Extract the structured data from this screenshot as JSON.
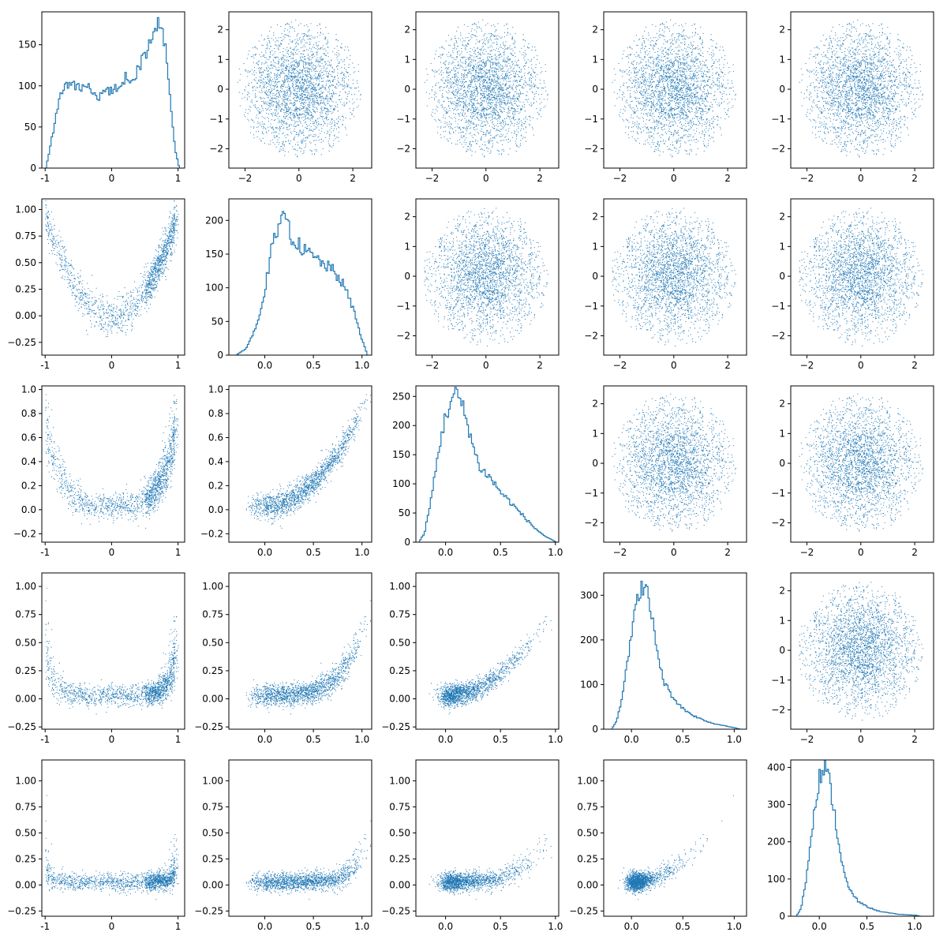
{
  "figure": {
    "type": "pair-plot",
    "rows": 5,
    "cols": 5,
    "marker_color": "#1f77b4",
    "axes_color": "#000000"
  },
  "chart_data": {
    "type": "scatter",
    "layout": "5x5 corner pair plot: histograms on diagonal, scatter of (column variable, row variable) below the diagonal, uncorrelated 2-D gaussian noise above the diagonal",
    "columns": [
      {
        "xlim": [
          -1.05,
          1.1
        ],
        "xticks": [
          -1,
          0,
          1
        ],
        "xtick_labels": [
          "-1",
          "0",
          "1"
        ]
      },
      {
        "xlim": [
          -0.37,
          1.1
        ],
        "xticks": [
          0.0,
          0.5,
          1.0
        ],
        "xtick_labels": [
          "0.0",
          "0.5",
          "1.0"
        ]
      },
      {
        "xlim": [
          -0.27,
          1.03
        ],
        "xticks": [
          0.0,
          0.5,
          1.0
        ],
        "xtick_labels": [
          "0.0",
          "0.5",
          "1.0"
        ]
      },
      {
        "xlim": [
          -0.27,
          1.12
        ],
        "xticks": [
          0.0,
          0.5,
          1.0
        ],
        "xtick_labels": [
          "0.0",
          "0.5",
          "1.0"
        ]
      },
      {
        "xlim": [
          -0.3,
          1.2
        ],
        "xticks": [
          0.0,
          0.5,
          1.0
        ],
        "xtick_labels": [
          "0.0",
          "0.5",
          "1.0"
        ]
      }
    ],
    "rows": [
      {
        "ylim": [
          -0.37,
          1.1
        ],
        "yticks": [
          -0.25,
          0.0,
          0.25,
          0.5,
          0.75,
          1.0
        ],
        "ytick_labels": [
          "−0.25",
          "0.00",
          "0.25",
          "0.50",
          "0.75",
          "1.00"
        ]
      },
      {
        "ylim": [
          -0.27,
          1.03
        ],
        "yticks": [
          -0.2,
          0.0,
          0.2,
          0.4,
          0.6,
          0.8,
          1.0
        ],
        "ytick_labels": [
          "−0.2",
          "0.0",
          "0.2",
          "0.4",
          "0.6",
          "0.8",
          "1.0"
        ]
      },
      {
        "ylim": [
          -0.27,
          1.12
        ],
        "yticks": [
          -0.25,
          0.0,
          0.25,
          0.5,
          0.75,
          1.0
        ],
        "ytick_labels": [
          "−0.25",
          "0.00",
          "0.25",
          "0.50",
          "0.75",
          "1.00"
        ]
      },
      {
        "ylim": [
          -0.3,
          1.2
        ],
        "yticks": [
          -0.25,
          0.0,
          0.25,
          0.5,
          0.75,
          1.0
        ],
        "ytick_labels": [
          "−0.25",
          "0.00",
          "0.25",
          "0.50",
          "0.75",
          "1.00"
        ]
      }
    ],
    "noise_axes": {
      "xlim": [
        -2.6,
        2.7
      ],
      "ylim": [
        -2.65,
        2.6
      ],
      "ticks": [
        -2,
        -1,
        0,
        1,
        2
      ],
      "xtick_labels": [
        "−2",
        "0",
        "2"
      ],
      "xtick_values": [
        -2,
        0,
        2
      ],
      "ytick_labels": [
        "−2",
        "−1",
        "0",
        "1",
        "2"
      ]
    },
    "histograms": [
      {
        "variable": 0,
        "ylim": [
          0,
          190
        ],
        "yticks": [
          0,
          50,
          100,
          150
        ],
        "ytick_labels": [
          "0",
          "50",
          "100",
          "150"
        ],
        "bin_centers": [
          -1.0,
          -0.9,
          -0.8,
          -0.7,
          -0.6,
          -0.5,
          -0.4,
          -0.3,
          -0.2,
          -0.1,
          0.0,
          0.1,
          0.2,
          0.3,
          0.4,
          0.5,
          0.55,
          0.6,
          0.65,
          0.7,
          0.75,
          0.8,
          0.85,
          0.9,
          0.95,
          1.0
        ],
        "counts": [
          0,
          40,
          85,
          100,
          105,
          95,
          100,
          92,
          88,
          95,
          92,
          100,
          110,
          108,
          120,
          140,
          150,
          165,
          175,
          180,
          165,
          150,
          110,
          60,
          20,
          3
        ]
      },
      {
        "variable": 1,
        "ylim": [
          0,
          232
        ],
        "yticks": [
          0,
          50,
          100,
          150,
          200
        ],
        "ytick_labels": [
          "0",
          "50",
          "100",
          "150",
          "200"
        ],
        "bin_centers": [
          -0.3,
          -0.2,
          -0.1,
          0.0,
          0.05,
          0.1,
          0.15,
          0.2,
          0.25,
          0.3,
          0.4,
          0.5,
          0.6,
          0.7,
          0.8,
          0.9,
          1.0,
          1.05
        ],
        "counts": [
          0,
          10,
          40,
          100,
          150,
          175,
          185,
          220,
          180,
          170,
          155,
          145,
          135,
          125,
          105,
          70,
          20,
          0
        ]
      },
      {
        "variable": 2,
        "ylim": [
          0,
          268
        ],
        "yticks": [
          0,
          50,
          100,
          150,
          200,
          250
        ],
        "ytick_labels": [
          "0",
          "50",
          "100",
          "150",
          "200",
          "250"
        ],
        "bin_centers": [
          -0.25,
          -0.2,
          -0.15,
          -0.1,
          -0.05,
          0.0,
          0.05,
          0.1,
          0.15,
          0.2,
          0.25,
          0.3,
          0.4,
          0.5,
          0.6,
          0.7,
          0.8,
          0.9,
          1.0
        ],
        "counts": [
          0,
          15,
          60,
          120,
          180,
          220,
          245,
          255,
          230,
          200,
          160,
          130,
          110,
          85,
          65,
          45,
          25,
          10,
          0
        ]
      },
      {
        "variable": 3,
        "ylim": [
          0,
          350
        ],
        "yticks": [
          0,
          100,
          200,
          300
        ],
        "ytick_labels": [
          "0",
          "100",
          "200",
          "300"
        ],
        "bin_centers": [
          -0.2,
          -0.15,
          -0.1,
          -0.05,
          0.0,
          0.05,
          0.1,
          0.15,
          0.2,
          0.25,
          0.3,
          0.4,
          0.5,
          0.6,
          0.7,
          0.8,
          0.9,
          1.0,
          1.05
        ],
        "counts": [
          0,
          20,
          70,
          150,
          220,
          290,
          325,
          300,
          240,
          170,
          110,
          70,
          45,
          30,
          20,
          12,
          8,
          3,
          0
        ]
      },
      {
        "variable": 4,
        "ylim": [
          0,
          420
        ],
        "yticks": [
          0,
          100,
          200,
          300,
          400
        ],
        "ytick_labels": [
          "0",
          "100",
          "200",
          "300",
          "400"
        ],
        "bin_centers": [
          -0.25,
          -0.2,
          -0.15,
          -0.1,
          -0.05,
          0.0,
          0.05,
          0.1,
          0.15,
          0.2,
          0.25,
          0.3,
          0.4,
          0.5,
          0.6,
          0.7,
          0.8,
          0.9,
          1.0,
          1.05
        ],
        "counts": [
          0,
          20,
          90,
          200,
          310,
          380,
          400,
          360,
          280,
          190,
          120,
          75,
          40,
          25,
          15,
          10,
          6,
          4,
          3,
          0
        ]
      }
    ]
  }
}
